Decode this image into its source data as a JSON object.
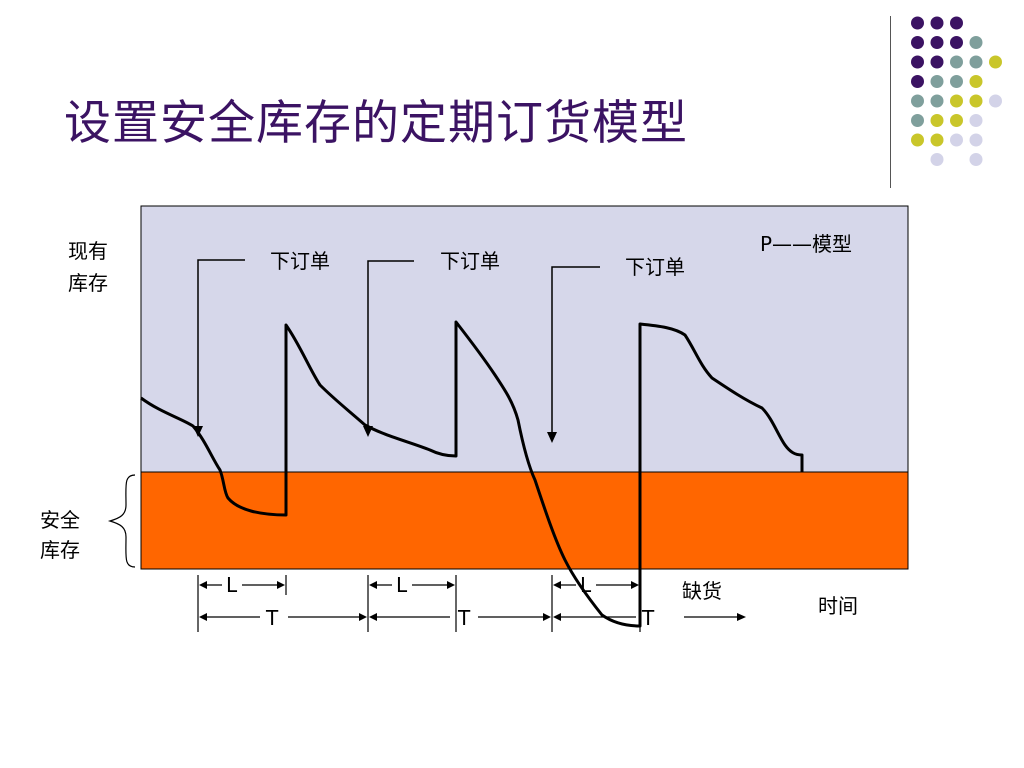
{
  "slide": {
    "title": "设置安全库存的定期订货模型"
  },
  "decor": {
    "dot_colors": [
      "#3b1363",
      "#7f9f9c",
      "#c9c62a",
      "#d3d3e8"
    ]
  },
  "diagram": {
    "colors": {
      "inventory_area": "#d6d7ea",
      "safety_stock_area": "#ff6600",
      "line": "#000000"
    },
    "labels": {
      "y_axis": [
        "现有",
        "库存"
      ],
      "safety_stock": [
        "安全",
        "库存"
      ],
      "model": "P——模型",
      "order_1": "下订单",
      "order_2": "下订单",
      "order_3": "下订单",
      "stockout": "缺货",
      "time": "时间",
      "lead_time": "L",
      "period": "T"
    }
  }
}
